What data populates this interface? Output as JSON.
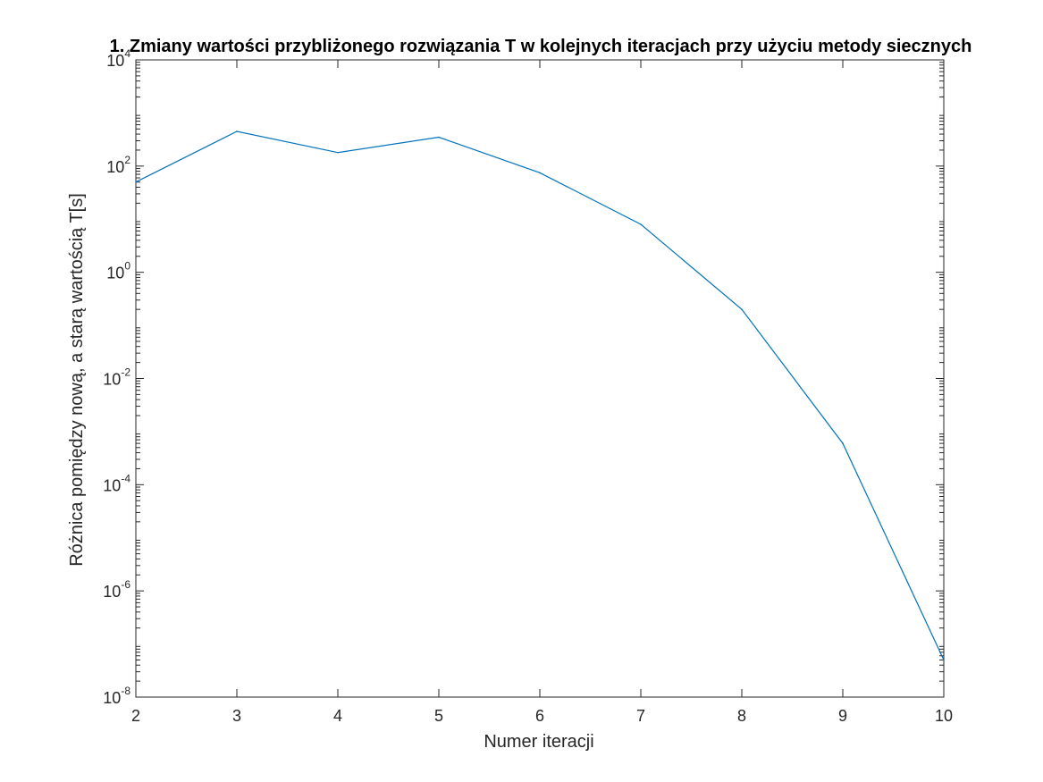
{
  "chart_data": {
    "type": "line",
    "title": "1. Zmiany wartości przybliżonego rozwiązania T  w kolejnych iteracjach przy użyciu metody siecznych",
    "xlabel": "Numer iteracji",
    "ylabel": "Różnica pomiędzy nową, a starą wartością T[s]",
    "xlim": [
      2,
      10
    ],
    "ylim": [
      1e-08,
      10000
    ],
    "yscale": "log",
    "grid": false,
    "x_ticks": [
      {
        "value": 2,
        "label": "2"
      },
      {
        "value": 3,
        "label": "3"
      },
      {
        "value": 4,
        "label": "4"
      },
      {
        "value": 5,
        "label": "5"
      },
      {
        "value": 6,
        "label": "6"
      },
      {
        "value": 7,
        "label": "7"
      },
      {
        "value": 8,
        "label": "8"
      },
      {
        "value": 9,
        "label": "9"
      },
      {
        "value": 10,
        "label": "10"
      }
    ],
    "y_ticks": [
      {
        "value": 1e-08,
        "base": "10",
        "exp": "-8"
      },
      {
        "value": 1e-06,
        "base": "10",
        "exp": "-6"
      },
      {
        "value": 0.0001,
        "base": "10",
        "exp": "-4"
      },
      {
        "value": 0.01,
        "base": "10",
        "exp": "-2"
      },
      {
        "value": 1,
        "base": "10",
        "exp": "0"
      },
      {
        "value": 100,
        "base": "10",
        "exp": "2"
      },
      {
        "value": 10000,
        "base": "10",
        "exp": "4"
      }
    ],
    "series": [
      {
        "color": "#0072BD",
        "x": [
          2,
          3,
          4,
          5,
          6,
          7,
          8,
          9,
          10
        ],
        "y": [
          50,
          450,
          180,
          350,
          75,
          8,
          0.2,
          0.0006,
          5e-08
        ]
      }
    ]
  }
}
